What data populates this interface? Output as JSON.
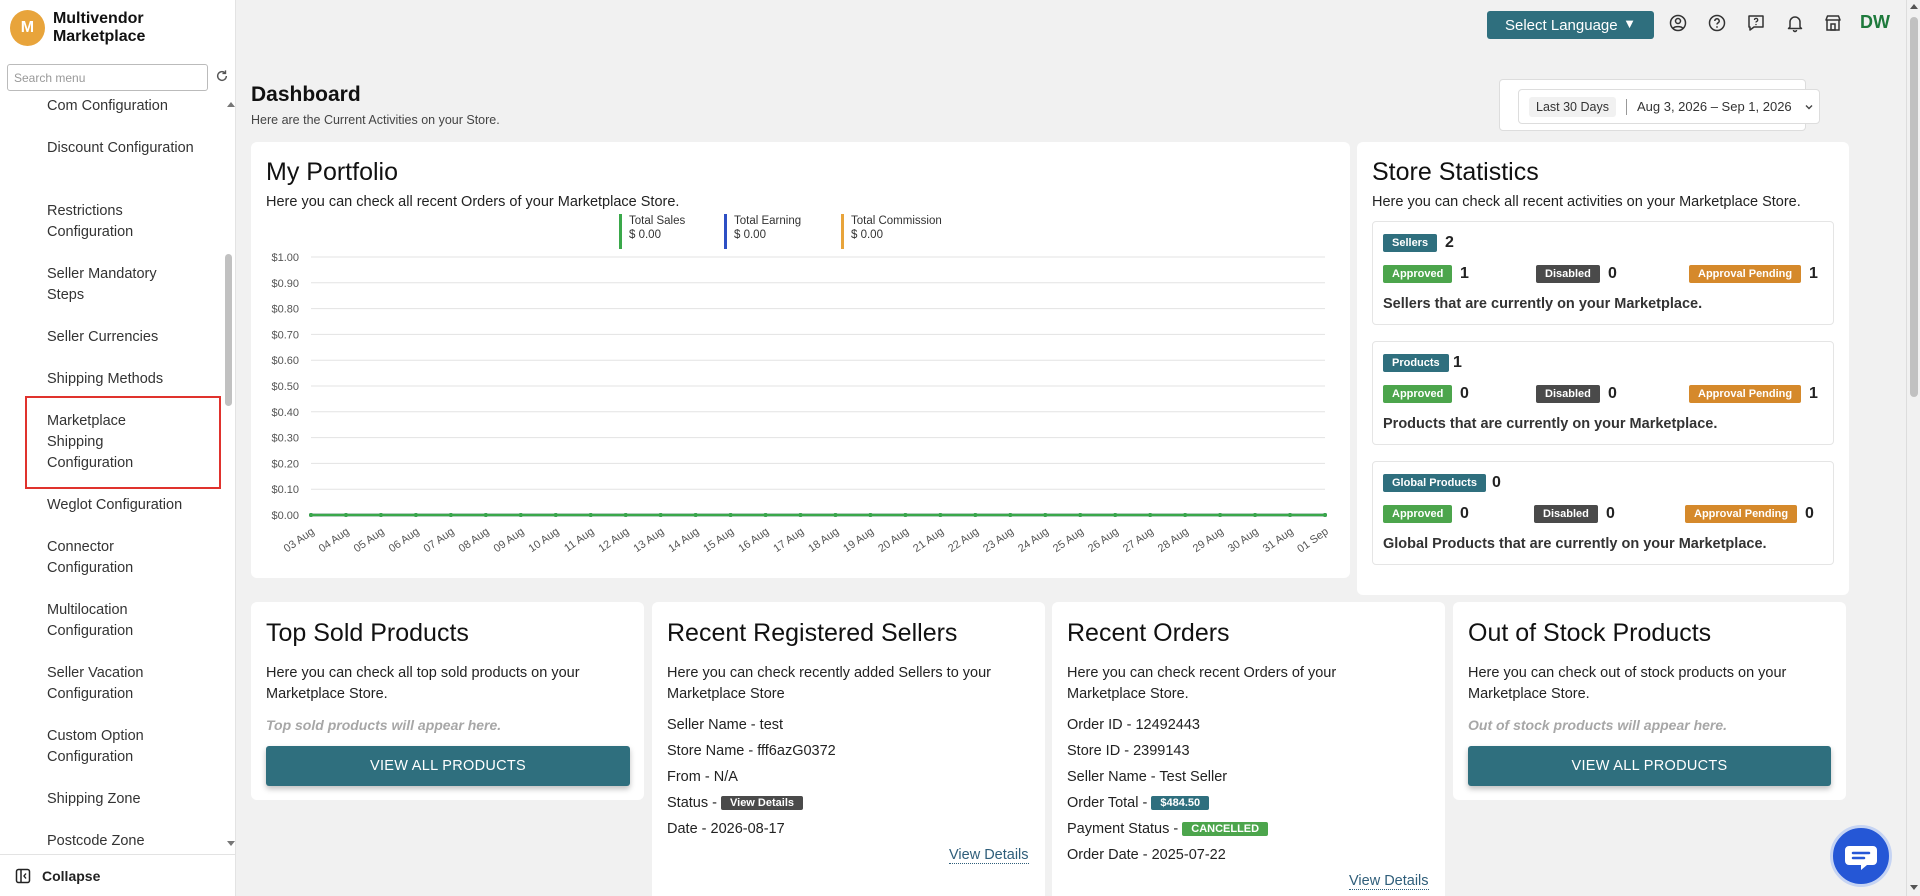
{
  "brand": {
    "logo_letter": "M",
    "name": "Multivendor Marketplace"
  },
  "sidebar": {
    "search_placeholder": "Search menu",
    "items": [
      "Com Configuration",
      "Discount Configuration",
      "Restrictions Configuration",
      "Seller Mandatory Steps",
      "Seller Currencies",
      "Shipping Methods",
      "Marketplace Shipping Configuration",
      "Weglot Configuration",
      "Connector Configuration",
      "Multilocation Configuration",
      "Seller Vacation Configuration",
      "Custom Option Configuration",
      "Shipping Zone",
      "Postcode Zone"
    ],
    "highlighted_item": "Marketplace Shipping Configuration",
    "collapse_label": "Collapse"
  },
  "topbar": {
    "language_button": "Select Language",
    "icons": [
      "user-circle-icon",
      "help-circle-icon",
      "feedback-icon",
      "bell-icon",
      "store-icon"
    ],
    "avatar": "DW"
  },
  "page": {
    "title": "Dashboard",
    "subtitle": "Here are the Current Activities on your Store."
  },
  "date_range": {
    "preset": "Last 30 Days",
    "range": "Aug 3, 2026 – Sep 1, 2026"
  },
  "portfolio": {
    "title": "My Portfolio",
    "desc": "Here you can check all recent Orders of your Marketplace Store.",
    "legend": [
      {
        "name": "Total Sales",
        "value": "$ 0.00",
        "color": "#3aa84a"
      },
      {
        "name": "Total Earning",
        "value": "$ 0.00",
        "color": "#2d4fc4"
      },
      {
        "name": "Total Commission",
        "value": "$ 0.00",
        "color": "#e8a43b"
      }
    ]
  },
  "chart_data": {
    "type": "line",
    "x": [
      "03 Aug",
      "04 Aug",
      "05 Aug",
      "06 Aug",
      "07 Aug",
      "08 Aug",
      "09 Aug",
      "10 Aug",
      "11 Aug",
      "12 Aug",
      "13 Aug",
      "14 Aug",
      "15 Aug",
      "16 Aug",
      "17 Aug",
      "18 Aug",
      "19 Aug",
      "20 Aug",
      "21 Aug",
      "22 Aug",
      "23 Aug",
      "24 Aug",
      "25 Aug",
      "26 Aug",
      "27 Aug",
      "28 Aug",
      "29 Aug",
      "30 Aug",
      "31 Aug",
      "01 Sep"
    ],
    "series": [
      {
        "name": "Total Sales",
        "color": "#3aa84a",
        "values": [
          0,
          0,
          0,
          0,
          0,
          0,
          0,
          0,
          0,
          0,
          0,
          0,
          0,
          0,
          0,
          0,
          0,
          0,
          0,
          0,
          0,
          0,
          0,
          0,
          0,
          0,
          0,
          0,
          0,
          0
        ]
      },
      {
        "name": "Total Earning",
        "color": "#2d4fc4",
        "values": [
          0,
          0,
          0,
          0,
          0,
          0,
          0,
          0,
          0,
          0,
          0,
          0,
          0,
          0,
          0,
          0,
          0,
          0,
          0,
          0,
          0,
          0,
          0,
          0,
          0,
          0,
          0,
          0,
          0,
          0
        ]
      },
      {
        "name": "Total Commission",
        "color": "#e8a43b",
        "values": [
          0,
          0,
          0,
          0,
          0,
          0,
          0,
          0,
          0,
          0,
          0,
          0,
          0,
          0,
          0,
          0,
          0,
          0,
          0,
          0,
          0,
          0,
          0,
          0,
          0,
          0,
          0,
          0,
          0,
          0
        ]
      }
    ],
    "y_ticks": [
      "$1.00",
      "$0.90",
      "$0.80",
      "$0.70",
      "$0.60",
      "$0.50",
      "$0.40",
      "$0.30",
      "$0.20",
      "$0.10",
      "$0.00"
    ],
    "ylim": [
      0,
      1
    ],
    "grid": true,
    "legend": "top"
  },
  "store_stats": {
    "title": "Store Statistics",
    "desc": "Here you can check all recent activities on your Marketplace Store.",
    "blocks": [
      {
        "label": "Sellers",
        "count": "2",
        "approved": "1",
        "disabled": "0",
        "pending": "1",
        "note": "Sellers that are currently on your Marketplace."
      },
      {
        "label": "Products",
        "count": "1",
        "approved": "0",
        "disabled": "0",
        "pending": "1",
        "note": "Products that are currently on your Marketplace."
      },
      {
        "label": "Global Products",
        "count": "0",
        "approved": "0",
        "disabled": "0",
        "pending": "0",
        "note": "Global Products that are currently on your Marketplace."
      }
    ],
    "labels": {
      "approved": "Approved",
      "disabled": "Disabled",
      "pending": "Approval Pending"
    }
  },
  "top_sold": {
    "title": "Top Sold Products",
    "desc": "Here you can check all top sold products on your Marketplace Store.",
    "empty": "Top sold products will appear here.",
    "button": "VIEW ALL PRODUCTS"
  },
  "recent_sellers": {
    "title": "Recent Registered Sellers",
    "desc": "Here you can check recently added Sellers to your Marketplace Store",
    "seller_name_label": "Seller Name - ",
    "seller_name": "test",
    "store_name_label": "Store Name - ",
    "store_name": "fff6azG0372",
    "from_label": "From - ",
    "from": "N/A",
    "status_label": "Status - ",
    "status_badge": "View Details",
    "date_label": "Date - ",
    "date": "2026-08-17",
    "link": "View Details"
  },
  "recent_orders": {
    "title": "Recent Orders",
    "desc": "Here you can check recent Orders of your Marketplace Store.",
    "order_id_label": "Order ID - ",
    "order_id": "12492443",
    "store_id_label": "Store ID - ",
    "store_id": "2399143",
    "seller_label": "Seller Name - ",
    "seller": "Test Seller",
    "total_label": "Order Total - ",
    "total": "$484.50",
    "payment_label": "Payment Status - ",
    "payment": "CANCELLED",
    "date_label": "Order Date - ",
    "date": "2025-07-22",
    "link": "View Details"
  },
  "out_of_stock": {
    "title": "Out of Stock Products",
    "desc": "Here you can check out of stock products on your Marketplace Store.",
    "empty": "Out of stock products will appear here.",
    "button": "VIEW ALL PRODUCTS"
  }
}
